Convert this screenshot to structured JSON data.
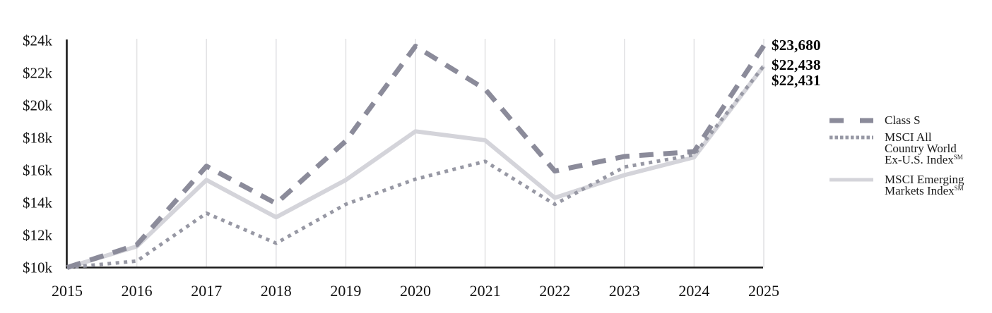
{
  "colors": {
    "class_s": "#8b8b9a",
    "acwi_ex_us": "#9798a4",
    "emerging_markets": "#d4d4da",
    "gridline": "#e3e3e5",
    "axis": "#1a1a1a"
  },
  "chart_data": {
    "type": "line",
    "title": "",
    "xlabel": "",
    "ylabel": "",
    "x": [
      2015,
      2016,
      2017,
      2018,
      2019,
      2020,
      2021,
      2022,
      2023,
      2024,
      2025
    ],
    "series": [
      {
        "name": "Class S",
        "line_style": "dashed",
        "color": "#8b8b9a",
        "end_label": "$23,680",
        "end_value": 23680,
        "values": [
          10000,
          11400,
          16250,
          13950,
          17800,
          23650,
          21000,
          15950,
          16850,
          17150,
          23680
        ]
      },
      {
        "name": "MSCI All Country World Ex-U.S. Index℠",
        "line_style": "dotted",
        "color": "#9798a4",
        "end_label": "$22,438",
        "end_value": 22438,
        "values": [
          10000,
          10400,
          13350,
          11500,
          13900,
          15450,
          16550,
          13900,
          16200,
          16950,
          22438
        ]
      },
      {
        "name": "MSCI Emerging Markets Index℠",
        "line_style": "solid",
        "color": "#d4d4da",
        "end_label": "$22,431",
        "end_value": 22431,
        "values": [
          10000,
          11300,
          15400,
          13100,
          15400,
          18400,
          17850,
          14300,
          15700,
          16800,
          22431
        ]
      }
    ],
    "ylim": [
      10000,
      24000
    ],
    "yticks": [
      {
        "label": "$10k",
        "value": 10000
      },
      {
        "label": "$12k",
        "value": 12000
      },
      {
        "label": "$14k",
        "value": 14000
      },
      {
        "label": "$16k",
        "value": 16000
      },
      {
        "label": "$18k",
        "value": 18000
      },
      {
        "label": "$20k",
        "value": 20000
      },
      {
        "label": "$22k",
        "value": 22000
      },
      {
        "label": "$24k",
        "value": 24000
      }
    ],
    "grid": "vertical-only",
    "legend_position": "right"
  },
  "legend": {
    "items": [
      {
        "lines": [
          "Class S"
        ],
        "sm": ""
      },
      {
        "lines": [
          "MSCI All",
          "Country World",
          "Ex-U.S. Index"
        ],
        "sm": "SM"
      },
      {
        "lines": [
          "MSCI Emerging",
          "Markets Index"
        ],
        "sm": "SM"
      }
    ]
  }
}
